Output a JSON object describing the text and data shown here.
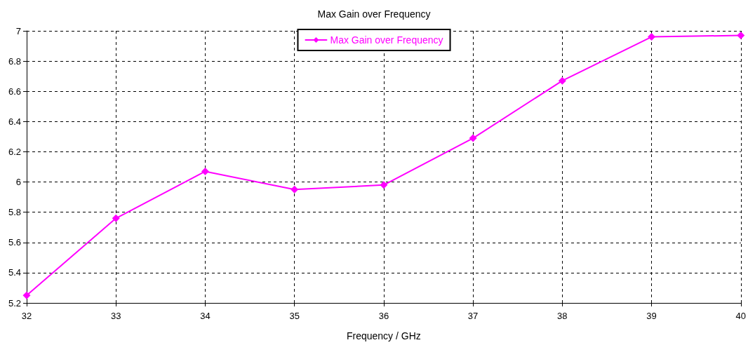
{
  "chart_data": {
    "type": "line",
    "title": "Max Gain over Frequency",
    "xlabel": "Frequency / GHz",
    "x": [
      32,
      33,
      34,
      35,
      36,
      37,
      38,
      39,
      40
    ],
    "series": [
      {
        "name": "Max Gain over Frequency",
        "color": "#ff00ff",
        "values": [
          5.25,
          5.76,
          6.07,
          5.95,
          5.98,
          6.29,
          6.67,
          6.96,
          6.97
        ]
      }
    ],
    "xlim": [
      32,
      40
    ],
    "xticks": [
      32,
      33,
      34,
      35,
      36,
      37,
      38,
      39,
      40
    ],
    "ylim": [
      5.2,
      7
    ],
    "yticks": [
      5.2,
      5.4,
      5.6,
      5.8,
      6,
      6.2,
      6.4,
      6.6,
      6.8,
      7
    ],
    "grid": true,
    "legend": "top",
    "marker": "diamond",
    "line_style": "solid"
  }
}
